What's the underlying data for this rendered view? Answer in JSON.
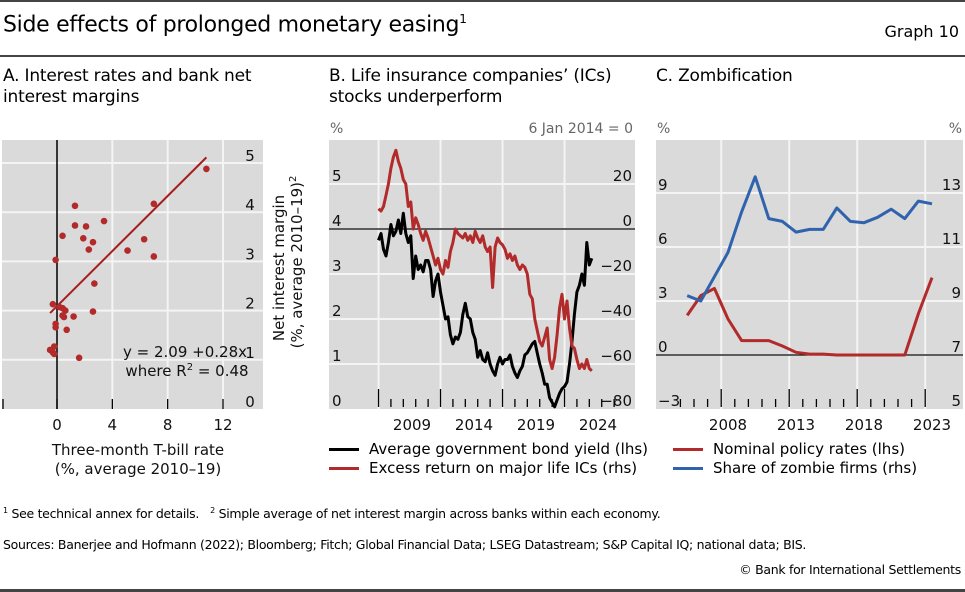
{
  "header": {
    "title": "Side effects of prolonged monetary easing",
    "title_footnote": "1",
    "graph_number": "Graph 10"
  },
  "colors": {
    "red": "#b22a2a",
    "blue": "#2f63ad",
    "black": "#000000",
    "plot_bg": "#dadada",
    "grid": "#f4f4f4"
  },
  "chart_data": [
    {
      "id": "A",
      "type": "scatter",
      "title": "A. Interest rates and bank net interest margins",
      "title_lines": [
        "A. Interest rates and bank net",
        "interest margins"
      ],
      "xlabel_lines": [
        "Three-month T-bill rate",
        "(%, average 2010–19)"
      ],
      "ylabel_lines": [
        "Net interest margin",
        "(%, average 2010–19)"
      ],
      "ylabel_footnote": "2",
      "xlim": [
        -4,
        15
      ],
      "ylim": [
        0,
        5.3
      ],
      "xticks": [
        0,
        4,
        8,
        12
      ],
      "yticks": [
        0,
        1,
        2,
        3,
        4,
        5
      ],
      "grid": true,
      "vertical_zero_line": true,
      "points": [
        {
          "x": 10.8,
          "y": 4.88
        },
        {
          "x": 7.0,
          "y": 4.17
        },
        {
          "x": 6.3,
          "y": 3.45
        },
        {
          "x": 7.0,
          "y": 3.1
        },
        {
          "x": 5.1,
          "y": 3.22
        },
        {
          "x": 1.3,
          "y": 4.13
        },
        {
          "x": 1.3,
          "y": 3.73
        },
        {
          "x": 2.1,
          "y": 3.71
        },
        {
          "x": 3.4,
          "y": 3.82
        },
        {
          "x": 0.4,
          "y": 3.52
        },
        {
          "x": 1.9,
          "y": 3.47
        },
        {
          "x": 2.6,
          "y": 3.39
        },
        {
          "x": 2.3,
          "y": 3.24
        },
        {
          "x": -0.1,
          "y": 3.03
        },
        {
          "x": 2.7,
          "y": 2.55
        },
        {
          "x": -0.3,
          "y": 2.13
        },
        {
          "x": 0.2,
          "y": 2.07
        },
        {
          "x": 0.4,
          "y": 2.05
        },
        {
          "x": 0.6,
          "y": 2.0
        },
        {
          "x": 0.4,
          "y": 1.9
        },
        {
          "x": 0.5,
          "y": 1.87
        },
        {
          "x": 1.2,
          "y": 1.88
        },
        {
          "x": 2.6,
          "y": 1.98
        },
        {
          "x": -0.1,
          "y": 1.73
        },
        {
          "x": -0.1,
          "y": 1.66
        },
        {
          "x": 0.7,
          "y": 1.61
        },
        {
          "x": -0.2,
          "y": 1.27
        },
        {
          "x": -0.5,
          "y": 1.2
        },
        {
          "x": -0.3,
          "y": 1.15
        },
        {
          "x": -0.2,
          "y": 1.12
        },
        {
          "x": 1.6,
          "y": 1.04
        }
      ],
      "fit": {
        "intercept": 2.09,
        "slope": 0.28,
        "x_range": [
          -0.5,
          10.8
        ]
      },
      "annotation": {
        "equation": "y = 2.09 +0.28x",
        "r2_prefix": "where R",
        "r2_sup": "2",
        "r2_suffix": " = 0.48"
      }
    },
    {
      "id": "B",
      "type": "line",
      "title_lines": [
        "B. Life insurance companies’ (ICs)",
        "stocks underperform"
      ],
      "left_unit": "%",
      "right_unit": "6 Jan 2014 = 0",
      "xlim": [
        2005.7,
        2025.6
      ],
      "xticks": [
        2009,
        2014,
        2019,
        2024
      ],
      "ylim_left": [
        0,
        5.9
      ],
      "yticks_left": [
        0,
        1,
        2,
        3,
        4,
        5
      ],
      "ylim_right": [
        -80,
        38
      ],
      "yticks_right": [
        -80,
        -60,
        -40,
        -20,
        0,
        20
      ],
      "zero_line_right": 0,
      "series": [
        {
          "name": "Average government bond yield (lhs)",
          "axis": "left",
          "color": "#000000",
          "x": [
            2006.3,
            2006.5,
            2006.7,
            2006.9,
            2007.1,
            2007.3,
            2007.5,
            2007.7,
            2007.9,
            2008.1,
            2008.3,
            2008.5,
            2008.7,
            2008.9,
            2009.1,
            2009.3,
            2009.5,
            2009.7,
            2009.9,
            2010.1,
            2010.3,
            2010.5,
            2010.7,
            2010.9,
            2011.1,
            2011.3,
            2011.5,
            2011.7,
            2011.9,
            2012.1,
            2012.3,
            2012.5,
            2012.7,
            2012.9,
            2013.1,
            2013.3,
            2013.5,
            2013.7,
            2013.9,
            2014.1,
            2014.3,
            2014.5,
            2014.7,
            2014.9,
            2015.1,
            2015.3,
            2015.5,
            2015.7,
            2015.9,
            2016.1,
            2016.3,
            2016.5,
            2016.7,
            2016.9,
            2017.1,
            2017.3,
            2017.5,
            2017.7,
            2017.9,
            2018.1,
            2018.3,
            2018.5,
            2018.7,
            2018.9,
            2019.1,
            2019.3,
            2019.5,
            2019.7,
            2019.9,
            2020.1,
            2020.3,
            2020.5,
            2020.7,
            2020.9,
            2021.1,
            2021.3,
            2021.5,
            2021.7,
            2021.9,
            2022.1,
            2022.3,
            2022.5,
            2022.7,
            2022.9,
            2023.1,
            2023.3,
            2023.5
          ],
          "y": [
            3.75,
            3.9,
            3.55,
            3.4,
            3.7,
            4.1,
            3.85,
            3.95,
            4.2,
            3.9,
            4.35,
            3.9,
            3.7,
            3.85,
            2.9,
            3.4,
            3.1,
            3.2,
            3.05,
            3.3,
            3.3,
            3.1,
            2.5,
            2.85,
            3.0,
            2.6,
            2.3,
            2.0,
            2.05,
            1.65,
            1.45,
            1.6,
            1.55,
            1.7,
            2.1,
            2.35,
            2.05,
            2.0,
            1.7,
            1.55,
            1.15,
            1.3,
            1.1,
            1.05,
            1.25,
            1.0,
            0.85,
            0.75,
            1.0,
            1.15,
            1.0,
            1.1,
            1.1,
            1.2,
            0.95,
            0.8,
            0.7,
            0.85,
            0.95,
            1.2,
            1.25,
            1.35,
            1.45,
            1.5,
            1.25,
            1.0,
            0.8,
            0.55,
            0.55,
            0.25,
            0.15,
            0.05,
            0.2,
            0.35,
            0.45,
            0.5,
            0.6,
            1.0,
            1.5,
            2.1,
            2.6,
            2.75,
            3.0,
            2.75,
            3.7,
            3.2,
            3.35
          ]
        },
        {
          "name": "Excess return on major life ICs (rhs)",
          "axis": "right",
          "color": "#b22a2a",
          "x": [
            2006.3,
            2006.5,
            2006.7,
            2006.9,
            2007.1,
            2007.3,
            2007.5,
            2007.7,
            2007.9,
            2008.1,
            2008.3,
            2008.5,
            2008.7,
            2008.9,
            2009.1,
            2009.3,
            2009.5,
            2009.7,
            2009.9,
            2010.1,
            2010.3,
            2010.5,
            2010.7,
            2010.9,
            2011.1,
            2011.3,
            2011.5,
            2011.7,
            2011.9,
            2012.1,
            2012.3,
            2012.5,
            2012.7,
            2012.9,
            2013.1,
            2013.3,
            2013.5,
            2013.7,
            2013.9,
            2014.1,
            2014.3,
            2014.5,
            2014.7,
            2014.9,
            2015.1,
            2015.3,
            2015.5,
            2015.7,
            2015.9,
            2016.1,
            2016.3,
            2016.5,
            2016.7,
            2016.9,
            2017.1,
            2017.3,
            2017.5,
            2017.7,
            2017.9,
            2018.1,
            2018.3,
            2018.5,
            2018.7,
            2018.9,
            2019.1,
            2019.3,
            2019.5,
            2019.7,
            2019.9,
            2020.1,
            2020.3,
            2020.5,
            2020.7,
            2020.9,
            2021.1,
            2021.3,
            2021.5,
            2021.7,
            2021.9,
            2022.1,
            2022.3,
            2022.5,
            2022.7,
            2022.9,
            2023.1,
            2023.3,
            2023.5
          ],
          "y": [
            9,
            8,
            10,
            15,
            20,
            27,
            32,
            35,
            30,
            27,
            22,
            20,
            10,
            12,
            0,
            5,
            2,
            -2,
            -5,
            -1,
            -4,
            -8,
            -12,
            -16,
            -13,
            -18,
            -20,
            -14,
            -17,
            -10,
            -6,
            0,
            -2,
            -3,
            -4,
            -2,
            -5,
            -3,
            -6,
            -1,
            -4,
            -6,
            -3,
            -8,
            -10,
            -8,
            -26,
            -8,
            -4,
            -6,
            -7,
            -9,
            -13,
            -11,
            -14,
            -12,
            -16,
            -18,
            -16,
            -17,
            -20,
            -29,
            -31,
            -40,
            -45,
            -50,
            -52,
            -48,
            -44,
            -58,
            -62,
            -57,
            -47,
            -35,
            -29,
            -40,
            -32,
            -44,
            -52,
            -53,
            -58,
            -62,
            -60,
            -62,
            -58,
            -62,
            -63
          ]
        }
      ]
    },
    {
      "id": "C",
      "type": "line",
      "title_lines": [
        "C. Zombification"
      ],
      "left_unit": "%",
      "right_unit": "%",
      "xlim": [
        2002.7,
        2025.3
      ],
      "xticks": [
        2008,
        2013,
        2018,
        2023
      ],
      "ylim_left": [
        -3,
        11
      ],
      "yticks_left": [
        -3,
        0,
        3,
        6,
        9
      ],
      "ylim_right": [
        5,
        14.3
      ],
      "yticks_right": [
        5,
        7,
        9,
        11,
        13
      ],
      "zero_line_left": 0,
      "series": [
        {
          "name": "Nominal policy rates (lhs)",
          "axis": "left",
          "color": "#b22a2a",
          "x": [
            2005,
            2006,
            2007,
            2008,
            2009,
            2010,
            2011,
            2012,
            2013,
            2014,
            2015,
            2016,
            2017,
            2018,
            2019,
            2020,
            2021,
            2022,
            2023
          ],
          "y": [
            2.2,
            3.3,
            3.7,
            2.0,
            0.8,
            0.8,
            0.8,
            0.5,
            0.15,
            0.05,
            0.05,
            0.0,
            0.0,
            0.0,
            0.0,
            0.0,
            0.0,
            2.3,
            4.3
          ]
        },
        {
          "name": "Share of zombie firms (rhs)",
          "axis": "right",
          "color": "#2f63ad",
          "x": [
            2005,
            2006,
            2007,
            2008,
            2009,
            2010,
            2011,
            2012,
            2013,
            2014,
            2015,
            2016,
            2017,
            2018,
            2019,
            2020,
            2021,
            2022,
            2023
          ],
          "y": [
            9.2,
            9.0,
            9.9,
            10.8,
            12.3,
            13.6,
            12.05,
            11.95,
            11.55,
            11.65,
            11.65,
            12.45,
            11.95,
            11.9,
            12.1,
            12.4,
            12.05,
            12.7,
            12.6
          ]
        }
      ]
    }
  ],
  "footnotes": {
    "n1_mark": "1",
    "n1_text": "See technical annex for details.",
    "n2_mark": "2",
    "n2_text": "Simple average of net interest margin across banks within each economy.",
    "sources": "Sources: Banerjee and Hofmann (2022); Bloomberg; Fitch; Global Financial Data; LSEG Datastream; S&P Capital IQ; national data; BIS.",
    "copyright": "© Bank for International Settlements"
  }
}
